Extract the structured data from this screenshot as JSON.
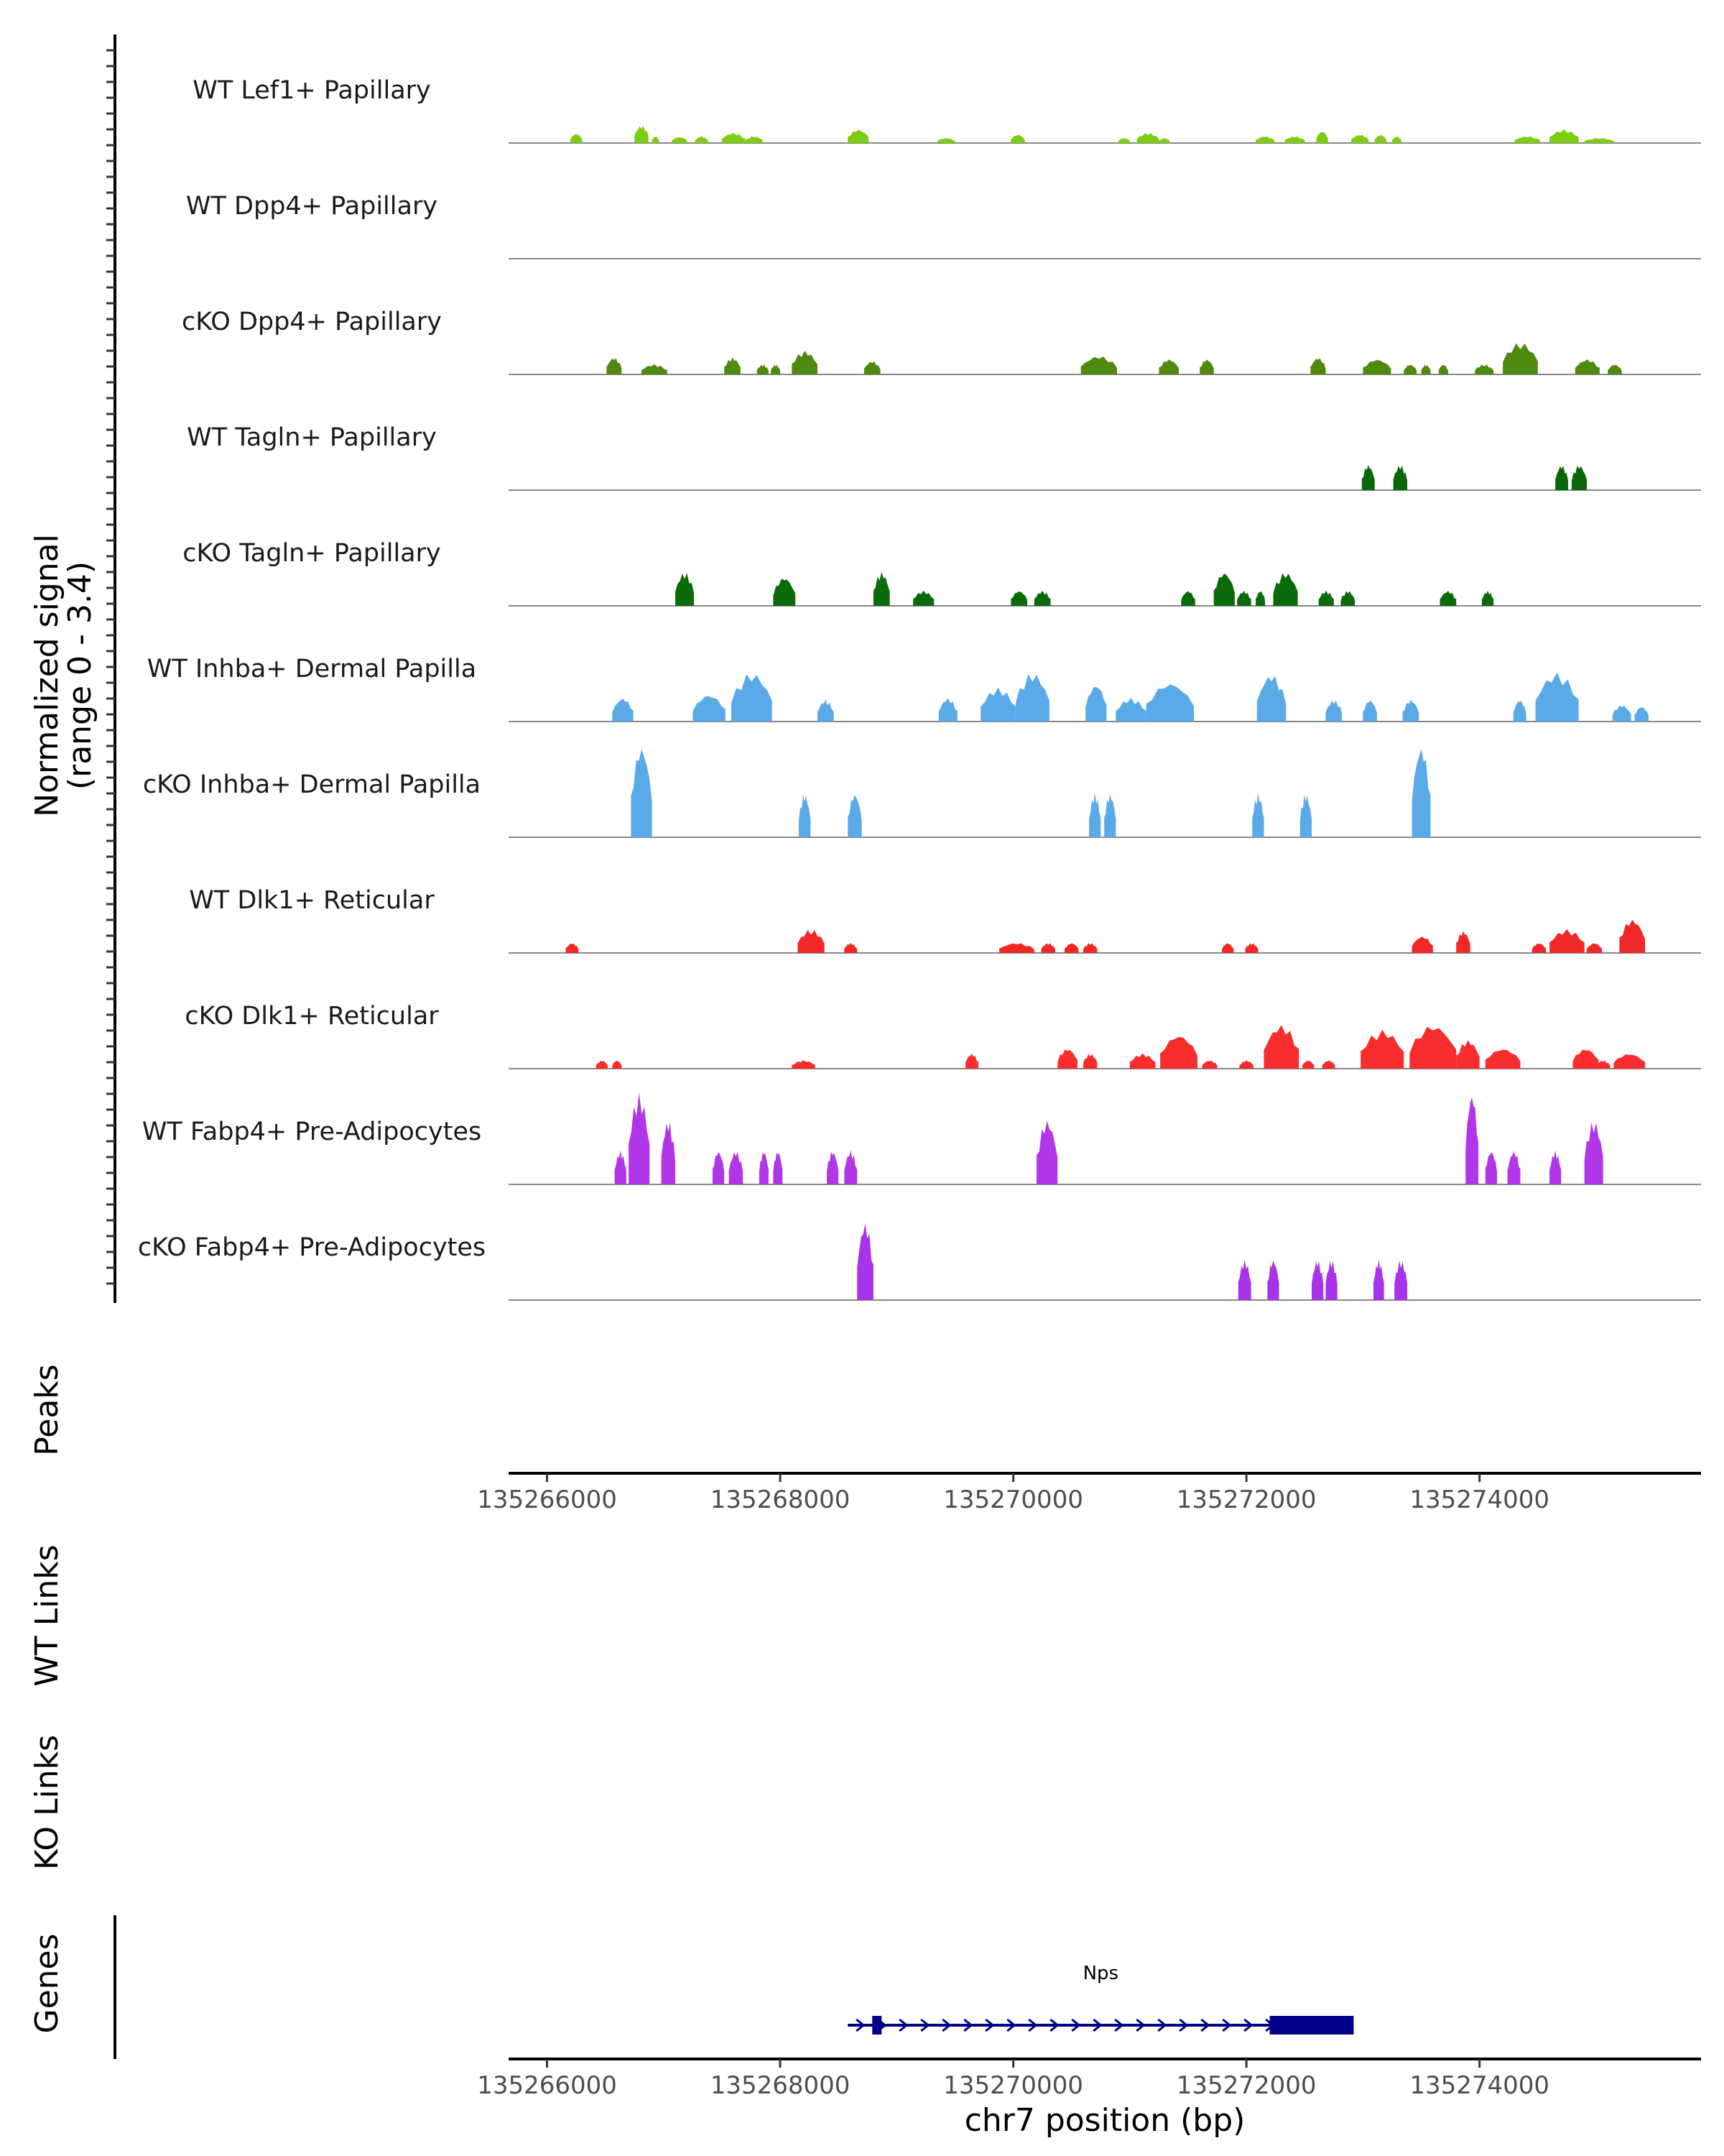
{
  "chart_data": {
    "type": "area",
    "title": "",
    "chromosome": "chr7",
    "xlabel": "chr7 position (bp)",
    "xlim": [
      135265670,
      135275900
    ],
    "x_ticks": [
      135266000,
      135268000,
      135270000,
      135272000,
      135274000
    ],
    "x_tick_labels": [
      "135266000",
      "135268000",
      "135270000",
      "135272000",
      "135274000"
    ],
    "ylabel_line1": "Normalized signal",
    "ylabel_line2": "(range 0 - 3.4)",
    "ylim": [
      0,
      3.4
    ],
    "panel_titles": {
      "peaks": "Peaks",
      "wt_links": "WT Links",
      "ko_links": "KO Links",
      "genes": "Genes"
    },
    "tracks": [
      {
        "name": "WT Lef1+ Papillary",
        "color": "#7CCD12",
        "peaks": [
          [
            135266200,
            135266300,
            0.28
          ],
          [
            135266750,
            135266870,
            0.52
          ],
          [
            135266900,
            135266960,
            0.2
          ],
          [
            135267070,
            135267200,
            0.18
          ],
          [
            135267270,
            135267380,
            0.2
          ],
          [
            135267500,
            135267700,
            0.3
          ],
          [
            135267700,
            135267850,
            0.2
          ],
          [
            135268580,
            135268760,
            0.4
          ],
          [
            135269350,
            135269500,
            0.15
          ],
          [
            135269980,
            135270100,
            0.25
          ],
          [
            135270900,
            135271000,
            0.15
          ],
          [
            135271060,
            135271250,
            0.3
          ],
          [
            135271250,
            135271340,
            0.15
          ],
          [
            135272080,
            135272240,
            0.2
          ],
          [
            135272330,
            135272500,
            0.2
          ],
          [
            135272600,
            135272700,
            0.35
          ],
          [
            135272900,
            135273050,
            0.25
          ],
          [
            135273100,
            135273200,
            0.25
          ],
          [
            135273250,
            135273330,
            0.2
          ],
          [
            135274300,
            135274520,
            0.2
          ],
          [
            135274600,
            135274850,
            0.4
          ],
          [
            135274900,
            135275150,
            0.15
          ]
        ]
      },
      {
        "name": "WT Dpp4+ Papillary",
        "color": "#5A9A0C",
        "peaks": []
      },
      {
        "name": "cKO Dpp4+ Papillary",
        "color": "#4F8A10",
        "peaks": [
          [
            135266510,
            135266640,
            0.5
          ],
          [
            135266810,
            135267030,
            0.3
          ],
          [
            135267520,
            135267660,
            0.5
          ],
          [
            135267800,
            135267900,
            0.3
          ],
          [
            135267920,
            135268000,
            0.3
          ],
          [
            135268100,
            135268320,
            0.7
          ],
          [
            135268720,
            135268860,
            0.4
          ],
          [
            135270580,
            135270890,
            0.55
          ],
          [
            135271250,
            135271420,
            0.45
          ],
          [
            135271600,
            135271720,
            0.45
          ],
          [
            135272550,
            135272680,
            0.5
          ],
          [
            135273000,
            135273240,
            0.45
          ],
          [
            135273350,
            135273460,
            0.3
          ],
          [
            135273500,
            135273580,
            0.3
          ],
          [
            135273650,
            135273730,
            0.3
          ],
          [
            135273960,
            135274120,
            0.3
          ],
          [
            135274200,
            135274500,
            0.95
          ],
          [
            135274820,
            135275030,
            0.45
          ],
          [
            135275100,
            135275220,
            0.3
          ]
        ]
      },
      {
        "name": "WT Tagln+ Papillary",
        "color": "#0A6609",
        "peaks": [
          [
            135272990,
            135273100,
            0.75
          ],
          [
            135273260,
            135273380,
            0.75
          ],
          [
            135274650,
            135274760,
            0.75
          ],
          [
            135274790,
            135274920,
            0.75
          ]
        ]
      },
      {
        "name": "cKO Tagln+ Papillary",
        "color": "#0B6B0A",
        "peaks": [
          [
            135267100,
            135267260,
            1.0
          ],
          [
            135267940,
            135268130,
            0.85
          ],
          [
            135268800,
            135268940,
            1.0
          ],
          [
            135269140,
            135269320,
            0.45
          ],
          [
            135269980,
            135270120,
            0.45
          ],
          [
            135270180,
            135270320,
            0.45
          ],
          [
            135271440,
            135271560,
            0.45
          ],
          [
            135271720,
            135271900,
            1.0
          ],
          [
            135271920,
            135272040,
            0.45
          ],
          [
            135272080,
            135272160,
            0.45
          ],
          [
            135272230,
            135272440,
            1.0
          ],
          [
            135272620,
            135272750,
            0.45
          ],
          [
            135272810,
            135272930,
            0.45
          ],
          [
            135273660,
            135273800,
            0.45
          ],
          [
            135274020,
            135274120,
            0.45
          ]
        ]
      },
      {
        "name": "WT Inhba+ Dermal Papilla",
        "color": "#5AAAE8",
        "peaks": [
          [
            135266560,
            135266740,
            0.7
          ],
          [
            135267250,
            135267530,
            0.8
          ],
          [
            135267580,
            135267930,
            1.45
          ],
          [
            135268320,
            135268460,
            0.65
          ],
          [
            135269360,
            135269520,
            0.7
          ],
          [
            135269720,
            135270020,
            1.0
          ],
          [
            135270020,
            135270310,
            1.45
          ],
          [
            135270620,
            135270800,
            1.1
          ],
          [
            135270880,
            135271140,
            0.7
          ],
          [
            135271140,
            135271550,
            1.15
          ],
          [
            135272090,
            135272340,
            1.4
          ],
          [
            135272680,
            135272820,
            0.65
          ],
          [
            135273000,
            135273120,
            0.65
          ],
          [
            135273340,
            135273480,
            0.65
          ],
          [
            135274290,
            135274400,
            0.65
          ],
          [
            135274480,
            135274850,
            1.45
          ],
          [
            135275140,
            135275300,
            0.5
          ],
          [
            135275330,
            135275450,
            0.45
          ]
        ]
      },
      {
        "name": "cKO Inhba+ Dermal Papilla",
        "color": "#5AAAE8",
        "peaks": [
          [
            135266720,
            135266900,
            2.7
          ],
          [
            135268160,
            135268260,
            1.3
          ],
          [
            135268580,
            135268700,
            1.3
          ],
          [
            135270650,
            135270750,
            1.3
          ],
          [
            135270780,
            135270880,
            1.3
          ],
          [
            135272050,
            135272150,
            1.3
          ],
          [
            135272460,
            135272560,
            1.3
          ],
          [
            135273420,
            135273580,
            2.7
          ]
        ]
      },
      {
        "name": "WT Dlk1+ Reticular",
        "color": "#F02828",
        "peaks": [
          [
            135266160,
            135266270,
            0.3
          ],
          [
            135268150,
            135268380,
            0.7
          ],
          [
            135268550,
            135268660,
            0.3
          ],
          [
            135269880,
            135270180,
            0.3
          ],
          [
            135270240,
            135270360,
            0.3
          ],
          [
            135270440,
            135270560,
            0.3
          ],
          [
            135270600,
            135270720,
            0.3
          ],
          [
            135271790,
            135271890,
            0.3
          ],
          [
            135271990,
            135272100,
            0.3
          ],
          [
            135273420,
            135273600,
            0.5
          ],
          [
            135273800,
            135273920,
            0.65
          ],
          [
            135274450,
            135274570,
            0.3
          ],
          [
            135274600,
            135274900,
            0.7
          ],
          [
            135274920,
            135275050,
            0.3
          ],
          [
            135275200,
            135275420,
            1.0
          ]
        ]
      },
      {
        "name": "cKO Dlk1+ Reticular",
        "color": "#F82D2D",
        "peaks": [
          [
            135266420,
            135266520,
            0.25
          ],
          [
            135266560,
            135266640,
            0.25
          ],
          [
            135268100,
            135268300,
            0.25
          ],
          [
            135269590,
            135269700,
            0.45
          ],
          [
            135270380,
            135270550,
            0.6
          ],
          [
            135270600,
            135270720,
            0.45
          ],
          [
            135271000,
            135271220,
            0.45
          ],
          [
            135271260,
            135271580,
            1.0
          ],
          [
            135271620,
            135271750,
            0.25
          ],
          [
            135271940,
            135272060,
            0.25
          ],
          [
            135272150,
            135272450,
            1.3
          ],
          [
            135272480,
            135272580,
            0.25
          ],
          [
            135272650,
            135272760,
            0.25
          ],
          [
            135272980,
            135273350,
            1.15
          ],
          [
            135273400,
            135273800,
            1.3
          ],
          [
            135273800,
            135274000,
            0.85
          ],
          [
            135274050,
            135274350,
            0.6
          ],
          [
            135274800,
            135275020,
            0.6
          ],
          [
            135275000,
            135275120,
            0.25
          ],
          [
            135275150,
            135275420,
            0.45
          ]
        ]
      },
      {
        "name": "WT Fabp4+ Pre-Adipocytes",
        "color": "#B036E8",
        "peaks": [
          [
            135266580,
            135266680,
            1.0
          ],
          [
            135266700,
            135266880,
            2.7
          ],
          [
            135266980,
            135267100,
            1.9
          ],
          [
            135267420,
            135267520,
            1.0
          ],
          [
            135267560,
            135267680,
            1.0
          ],
          [
            135267820,
            135267900,
            1.0
          ],
          [
            135267940,
            135268020,
            1.0
          ],
          [
            135268400,
            135268500,
            1.0
          ],
          [
            135268550,
            135268660,
            1.0
          ],
          [
            135270200,
            135270380,
            1.9
          ],
          [
            135273880,
            135273990,
            2.7
          ],
          [
            135274050,
            135274150,
            1.0
          ],
          [
            135274240,
            135274350,
            1.0
          ],
          [
            135274600,
            135274700,
            1.0
          ],
          [
            135274900,
            135275060,
            1.9
          ]
        ]
      },
      {
        "name": "cKO Fabp4+ Pre-Adipocytes",
        "color": "#A833E8",
        "peaks": [
          [
            135268660,
            135268800,
            2.3
          ],
          [
            135271930,
            135272040,
            1.2
          ],
          [
            135272180,
            135272280,
            1.2
          ],
          [
            135272560,
            135272660,
            1.2
          ],
          [
            135272680,
            135272780,
            1.2
          ],
          [
            135273090,
            135273180,
            1.2
          ],
          [
            135273270,
            135273380,
            1.2
          ]
        ]
      }
    ],
    "gene": {
      "name": "Nps",
      "strand": "+",
      "color": "#00008B",
      "start": 135268580,
      "end": 135272920,
      "exons": [
        [
          135268790,
          135268870
        ],
        [
          135272200,
          135272920
        ]
      ]
    }
  }
}
